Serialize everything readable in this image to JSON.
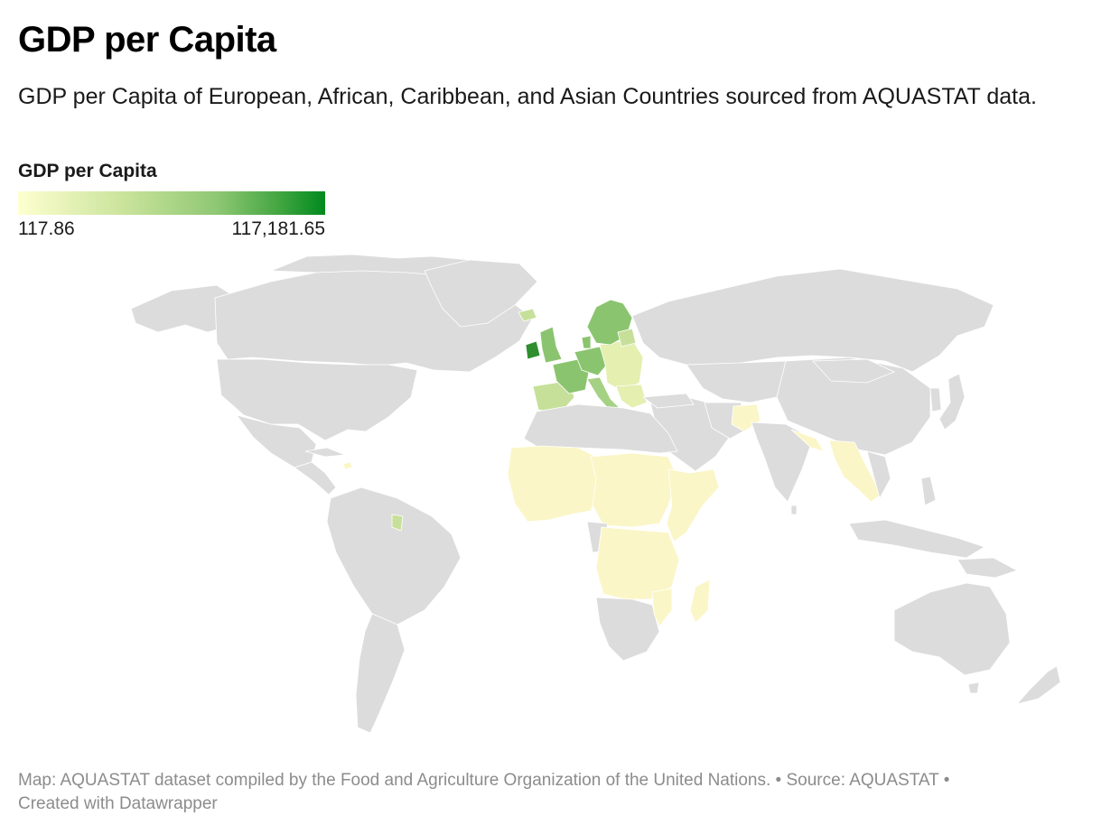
{
  "title": "GDP per Capita",
  "subtitle": "GDP per Capita of European, African, Caribbean, and Asian Countries sourced from AQUASTAT data.",
  "legend": {
    "title": "GDP per Capita",
    "min_label": "117.86",
    "max_label": "117,181.65",
    "color_low": "#feffd0",
    "color_high": "#008a1e"
  },
  "map": {
    "no_data_color": "#dcdcdc",
    "border_color": "#ffffff"
  },
  "footer": {
    "line1": "Map: AQUASTAT dataset compiled by the Food and Agriculture Organization of the United Nations.  • Source: AQUASTAT •",
    "line2": "Created with Datawrapper"
  }
}
